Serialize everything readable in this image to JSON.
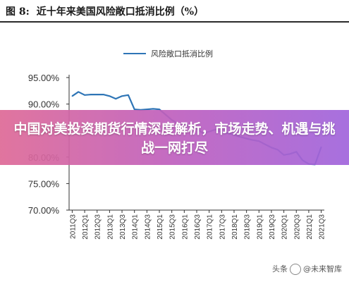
{
  "figure": {
    "number": "图 8:",
    "title": "近十年来美国风险敞口抵消比例（%）"
  },
  "overlay": {
    "headline": "中国对美投资期货行情深度解析，市场走势、机遇与挑战一网打尽"
  },
  "watermark": {
    "prefix": "头条",
    "name": "@未来智库"
  },
  "colors": {
    "line": "#2e75b6",
    "axis": "#333333",
    "title_rule": "#2b2b2b"
  },
  "chart_data": {
    "type": "line",
    "title": "",
    "xlabel": "",
    "ylabel": "",
    "ylim": [
      70,
      95
    ],
    "yticks": [
      "70.00%",
      "75.00%",
      "80.00%",
      "85.00%",
      "90.00%",
      "95.00%"
    ],
    "ytick_values": [
      70,
      75,
      80,
      85,
      90,
      95
    ],
    "grid": false,
    "legend": "top-left",
    "categories": [
      "2011Q3",
      "2011Q4",
      "2012Q1",
      "2012Q2",
      "2012Q3",
      "2012Q4",
      "2013Q1",
      "2013Q2",
      "2013Q3",
      "2013Q4",
      "2014Q1",
      "2014Q2",
      "2014Q3",
      "2014Q4",
      "2015Q1",
      "2015Q2",
      "2015Q3",
      "2015Q4",
      "2016Q1",
      "2016Q2",
      "2016Q3",
      "2016Q4",
      "2017Q1",
      "2017Q2",
      "2017Q3",
      "2017Q4",
      "2018Q1",
      "2018Q2",
      "2018Q3",
      "2018Q4",
      "2019Q1",
      "2019Q2",
      "2019Q3",
      "2019Q4",
      "2020Q1",
      "2020Q2",
      "2020Q3",
      "2020Q4",
      "2021Q1",
      "2021Q2",
      "2021Q3"
    ],
    "xtick_labels": [
      "2011Q3",
      "2012Q1",
      "2012Q3",
      "2013Q1",
      "2013Q3",
      "2014Q1",
      "2014Q3",
      "2015Q1",
      "2015Q3",
      "2016Q1",
      "2016Q3",
      "2017Q1",
      "2017Q3",
      "2018Q1",
      "2018Q3",
      "2019Q1",
      "2019Q3",
      "2020Q1",
      "2020Q3",
      "2021Q1",
      "2021Q3"
    ],
    "series": [
      {
        "name": "风险敞口抵消比例",
        "values": [
          91.5,
          92.3,
          91.7,
          91.8,
          91.8,
          91.8,
          91.5,
          91.0,
          91.5,
          91.7,
          89.0,
          88.9,
          89.0,
          89.1,
          89.0,
          88.0,
          87.0,
          86.3,
          86.2,
          85.8,
          85.4,
          84.5,
          84.8,
          85.2,
          84.7,
          84.5,
          84.2,
          83.8,
          83.5,
          83.2,
          83.0,
          82.4,
          81.8,
          81.4,
          80.4,
          80.6,
          81.0,
          79.4,
          78.7,
          78.6,
          81.9
        ]
      }
    ]
  }
}
